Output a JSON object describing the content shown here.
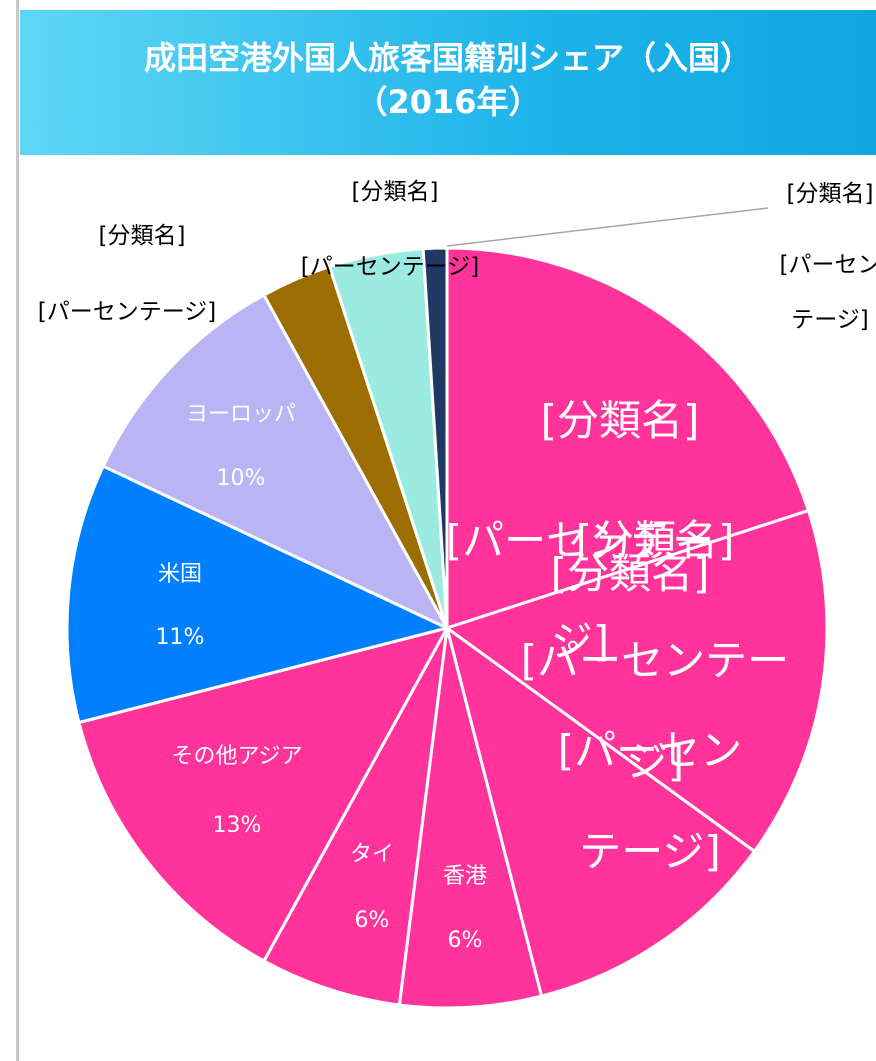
{
  "chart_data": {
    "type": "pie",
    "title": [
      "成田空港外国人旅客国籍別シェア（入国）",
      "（2016年）"
    ],
    "categories": [
      "[分類名]",
      "[分類名]",
      "[分類名]",
      "香港",
      "タイ",
      "その他アジア",
      "米国",
      "ヨーロッパ",
      "[分類名]",
      "[分類名]",
      "[分類名]"
    ],
    "values": [
      20,
      15,
      11,
      6,
      6,
      13,
      11,
      10,
      3,
      4,
      1
    ],
    "value_labels": [
      "[パーセンテージ]",
      "[パーセンテージ]",
      "[パーセンテージ]",
      "6%",
      "6%",
      "13%",
      "11%",
      "10%",
      "[パーセンテージ]",
      "[パーセンテージ]",
      "[パーセンテージ]"
    ],
    "colors": [
      "#ff3399",
      "#ff3399",
      "#ff3399",
      "#ff3399",
      "#ff3399",
      "#ff3399",
      "#0080ff",
      "#bab4f5",
      "#9c6d00",
      "#9bebe1",
      "#203864"
    ]
  }
}
